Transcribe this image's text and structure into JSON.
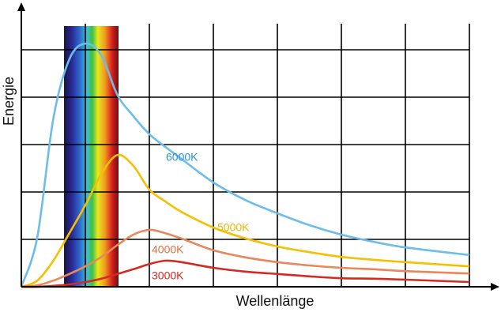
{
  "chart_data": {
    "type": "line",
    "x_label": "Wellenlänge",
    "y_label": "Energie",
    "xlim": [
      0,
      7.4
    ],
    "ylim": [
      0,
      5.5
    ],
    "xticks": [
      0,
      1,
      2,
      3,
      4,
      5,
      6,
      7
    ],
    "yticks": [
      0,
      1,
      2,
      3,
      4,
      5
    ],
    "grid": true,
    "x": [
      0,
      0.25,
      0.5,
      0.75,
      1,
      1.25,
      1.5,
      1.75,
      2,
      2.25,
      2.5,
      3,
      3.5,
      4,
      4.5,
      5,
      5.5,
      6,
      7
    ],
    "series": [
      {
        "name": "6000K",
        "color": "#6cbde9",
        "label_color": "#2a93d6",
        "values": [
          0,
          1.05,
          3.55,
          4.8,
          5.13,
          4.88,
          4.05,
          3.6,
          3.22,
          2.95,
          2.7,
          2.2,
          1.83,
          1.55,
          1.3,
          1.1,
          0.95,
          0.83,
          0.67
        ]
      },
      {
        "name": "5000K",
        "color": "#f5c000",
        "label_color": "#f0b400",
        "values": [
          0,
          0.13,
          0.55,
          1.13,
          1.72,
          2.38,
          2.78,
          2.55,
          2.05,
          1.8,
          1.58,
          1.25,
          1.02,
          0.85,
          0.73,
          0.63,
          0.57,
          0.52,
          0.43
        ]
      },
      {
        "name": "4000K",
        "color": "#e8875a",
        "label_color": "#e07040",
        "values": [
          0,
          0.03,
          0.13,
          0.27,
          0.43,
          0.63,
          0.88,
          1.1,
          1.2,
          1.13,
          1.02,
          0.77,
          0.62,
          0.52,
          0.45,
          0.4,
          0.37,
          0.33,
          0.28
        ]
      },
      {
        "name": "3000K",
        "color": "#d42a22",
        "label_color": "#d42a22",
        "values": [
          0,
          0,
          0.02,
          0.05,
          0.1,
          0.17,
          0.27,
          0.37,
          0.48,
          0.55,
          0.52,
          0.4,
          0.32,
          0.27,
          0.22,
          0.18,
          0.17,
          0.15,
          0.1
        ]
      }
    ]
  }
}
